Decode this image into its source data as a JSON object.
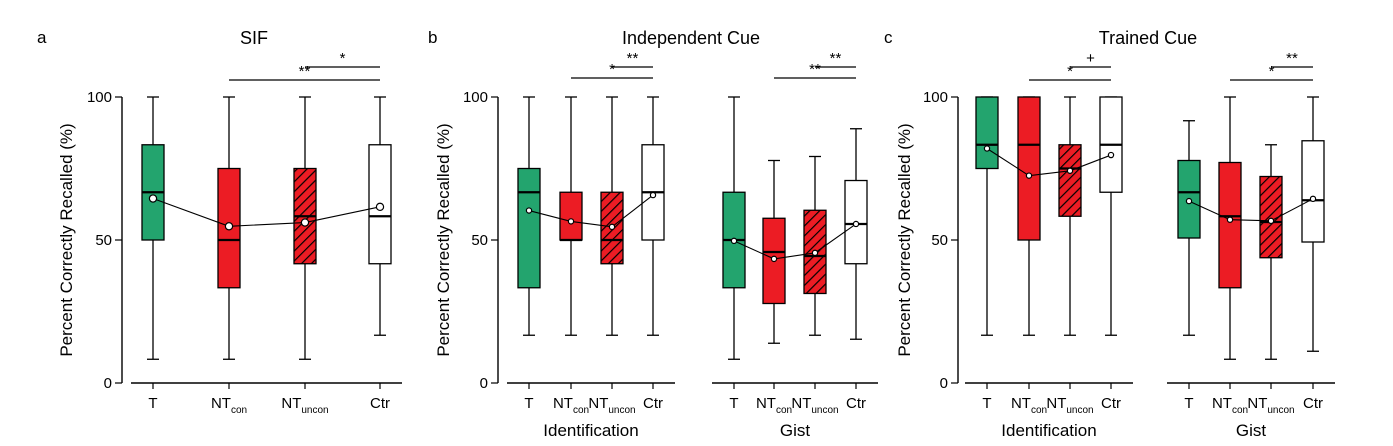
{
  "colors": {
    "green": "#23a46e",
    "red": "#ec1c24",
    "white": "#ffffff",
    "hatch": "#000000"
  },
  "chart_data": [
    {
      "type": "box",
      "panel_label": "a",
      "title": "SIF",
      "ylabel": "Percent Correctly Recalled (%)",
      "ylim": [
        0,
        100
      ],
      "yticks": [
        0,
        50,
        100
      ],
      "groups": [
        {
          "label": "",
          "boxes": [
            {
              "label": "T",
              "sub": "",
              "fill": "green",
              "hatch": false,
              "min": 8.3,
              "q1": 50,
              "median": 66.7,
              "q3": 83.3,
              "max": 100,
              "mean": 64.5
            },
            {
              "label": "NT",
              "sub": "con",
              "fill": "red",
              "hatch": false,
              "min": 8.3,
              "q1": 33.3,
              "median": 50,
              "q3": 75,
              "max": 100,
              "mean": 54.8
            },
            {
              "label": "NT",
              "sub": "uncon",
              "fill": "red",
              "hatch": true,
              "min": 8.3,
              "q1": 41.7,
              "median": 58.3,
              "q3": 75,
              "max": 100,
              "mean": 56.1
            },
            {
              "label": "Ctr",
              "sub": "",
              "fill": "white",
              "hatch": false,
              "min": 16.7,
              "q1": 41.7,
              "median": 58.3,
              "q3": 83.3,
              "max": 100,
              "mean": 61.6
            }
          ]
        }
      ],
      "significance": [
        {
          "from": 1,
          "to": 3,
          "label": "**",
          "level": 1
        },
        {
          "from": 2,
          "to": 3,
          "label": "*",
          "level": 2
        }
      ]
    },
    {
      "type": "box",
      "panel_label": "b",
      "title": "Independent Cue",
      "ylabel": "Percent Correctly Recalled (%)",
      "ylim": [
        0,
        100
      ],
      "yticks": [
        0,
        50,
        100
      ],
      "groups": [
        {
          "label": "Identification",
          "boxes": [
            {
              "label": "T",
              "sub": "",
              "fill": "green",
              "hatch": false,
              "min": 16.7,
              "q1": 33.3,
              "median": 66.7,
              "q3": 75,
              "max": 100,
              "mean": 60.3
            },
            {
              "label": "NT",
              "sub": "con",
              "fill": "red",
              "hatch": false,
              "min": 16.7,
              "q1": 50,
              "median": 50,
              "q3": 66.7,
              "max": 100,
              "mean": 56.5
            },
            {
              "label": "NT",
              "sub": "uncon",
              "fill": "red",
              "hatch": true,
              "min": 16.7,
              "q1": 41.7,
              "median": 50,
              "q3": 66.7,
              "max": 100,
              "mean": 54.6
            },
            {
              "label": "Ctr",
              "sub": "",
              "fill": "white",
              "hatch": false,
              "min": 16.7,
              "q1": 50,
              "median": 66.7,
              "q3": 83.3,
              "max": 100,
              "mean": 65.7
            }
          ]
        },
        {
          "label": "Gist",
          "boxes": [
            {
              "label": "T",
              "sub": "",
              "fill": "green",
              "hatch": false,
              "min": 8.3,
              "q1": 33.3,
              "median": 50,
              "q3": 66.7,
              "max": 100,
              "mean": 49.7
            },
            {
              "label": "NT",
              "sub": "con",
              "fill": "red",
              "hatch": false,
              "min": 13.9,
              "q1": 27.8,
              "median": 45.8,
              "q3": 57.6,
              "max": 77.8,
              "mean": 43.4
            },
            {
              "label": "NT",
              "sub": "uncon",
              "fill": "red",
              "hatch": true,
              "min": 16.7,
              "q1": 31.3,
              "median": 44.4,
              "q3": 60.4,
              "max": 79.2,
              "mean": 45.5
            },
            {
              "label": "Ctr",
              "sub": "",
              "fill": "white",
              "hatch": false,
              "min": 15.3,
              "q1": 41.7,
              "median": 55.6,
              "q3": 70.8,
              "max": 88.9,
              "mean": 55.6
            }
          ]
        }
      ],
      "significance": [
        {
          "group": 0,
          "from": 1,
          "to": 3,
          "label": "*",
          "level": 1
        },
        {
          "group": 0,
          "from": 2,
          "to": 3,
          "label": "**",
          "level": 2
        },
        {
          "group": 1,
          "from": 1,
          "to": 3,
          "label": "**",
          "level": 1
        },
        {
          "group": 1,
          "from": 2,
          "to": 3,
          "label": "**",
          "level": 2
        }
      ]
    },
    {
      "type": "box",
      "panel_label": "c",
      "title": "Trained Cue",
      "ylabel": "Percent Correctly Recalled (%)",
      "ylim": [
        0,
        100
      ],
      "yticks": [
        0,
        50,
        100
      ],
      "groups": [
        {
          "label": "Identification",
          "boxes": [
            {
              "label": "T",
              "sub": "",
              "fill": "green",
              "hatch": false,
              "min": 16.7,
              "q1": 75,
              "median": 83.3,
              "q3": 100,
              "max": 100,
              "mean": 82
            },
            {
              "label": "NT",
              "sub": "con",
              "fill": "red",
              "hatch": false,
              "min": 16.7,
              "q1": 50,
              "median": 83.3,
              "q3": 100,
              "max": 100,
              "mean": 72.5
            },
            {
              "label": "NT",
              "sub": "uncon",
              "fill": "red",
              "hatch": true,
              "min": 16.7,
              "q1": 58.3,
              "median": 75,
              "q3": 83.3,
              "max": 100,
              "mean": 74.2
            },
            {
              "label": "Ctr",
              "sub": "",
              "fill": "white",
              "hatch": false,
              "min": 16.7,
              "q1": 66.7,
              "median": 83.3,
              "q3": 100,
              "max": 100,
              "mean": 79.7
            }
          ]
        },
        {
          "label": "Gist",
          "boxes": [
            {
              "label": "T",
              "sub": "",
              "fill": "green",
              "hatch": false,
              "min": 16.7,
              "q1": 50.7,
              "median": 66.7,
              "q3": 77.8,
              "max": 91.7,
              "mean": 63.6
            },
            {
              "label": "NT",
              "sub": "con",
              "fill": "red",
              "hatch": false,
              "min": 8.3,
              "q1": 33.3,
              "median": 58.3,
              "q3": 77.1,
              "max": 100,
              "mean": 57.1
            },
            {
              "label": "NT",
              "sub": "uncon",
              "fill": "red",
              "hatch": true,
              "min": 8.3,
              "q1": 43.8,
              "median": 56.3,
              "q3": 72.2,
              "max": 83.3,
              "mean": 56.7
            },
            {
              "label": "Ctr",
              "sub": "",
              "fill": "white",
              "hatch": false,
              "min": 11.1,
              "q1": 49.3,
              "median": 63.9,
              "q3": 84.7,
              "max": 100,
              "mean": 64.4
            }
          ]
        }
      ],
      "significance": [
        {
          "group": 0,
          "from": 1,
          "to": 3,
          "label": "*",
          "level": 1
        },
        {
          "group": 0,
          "from": 2,
          "to": 3,
          "label": "+",
          "level": 2
        },
        {
          "group": 1,
          "from": 1,
          "to": 3,
          "label": "*",
          "level": 1
        },
        {
          "group": 1,
          "from": 2,
          "to": 3,
          "label": "**",
          "level": 2
        }
      ]
    }
  ]
}
